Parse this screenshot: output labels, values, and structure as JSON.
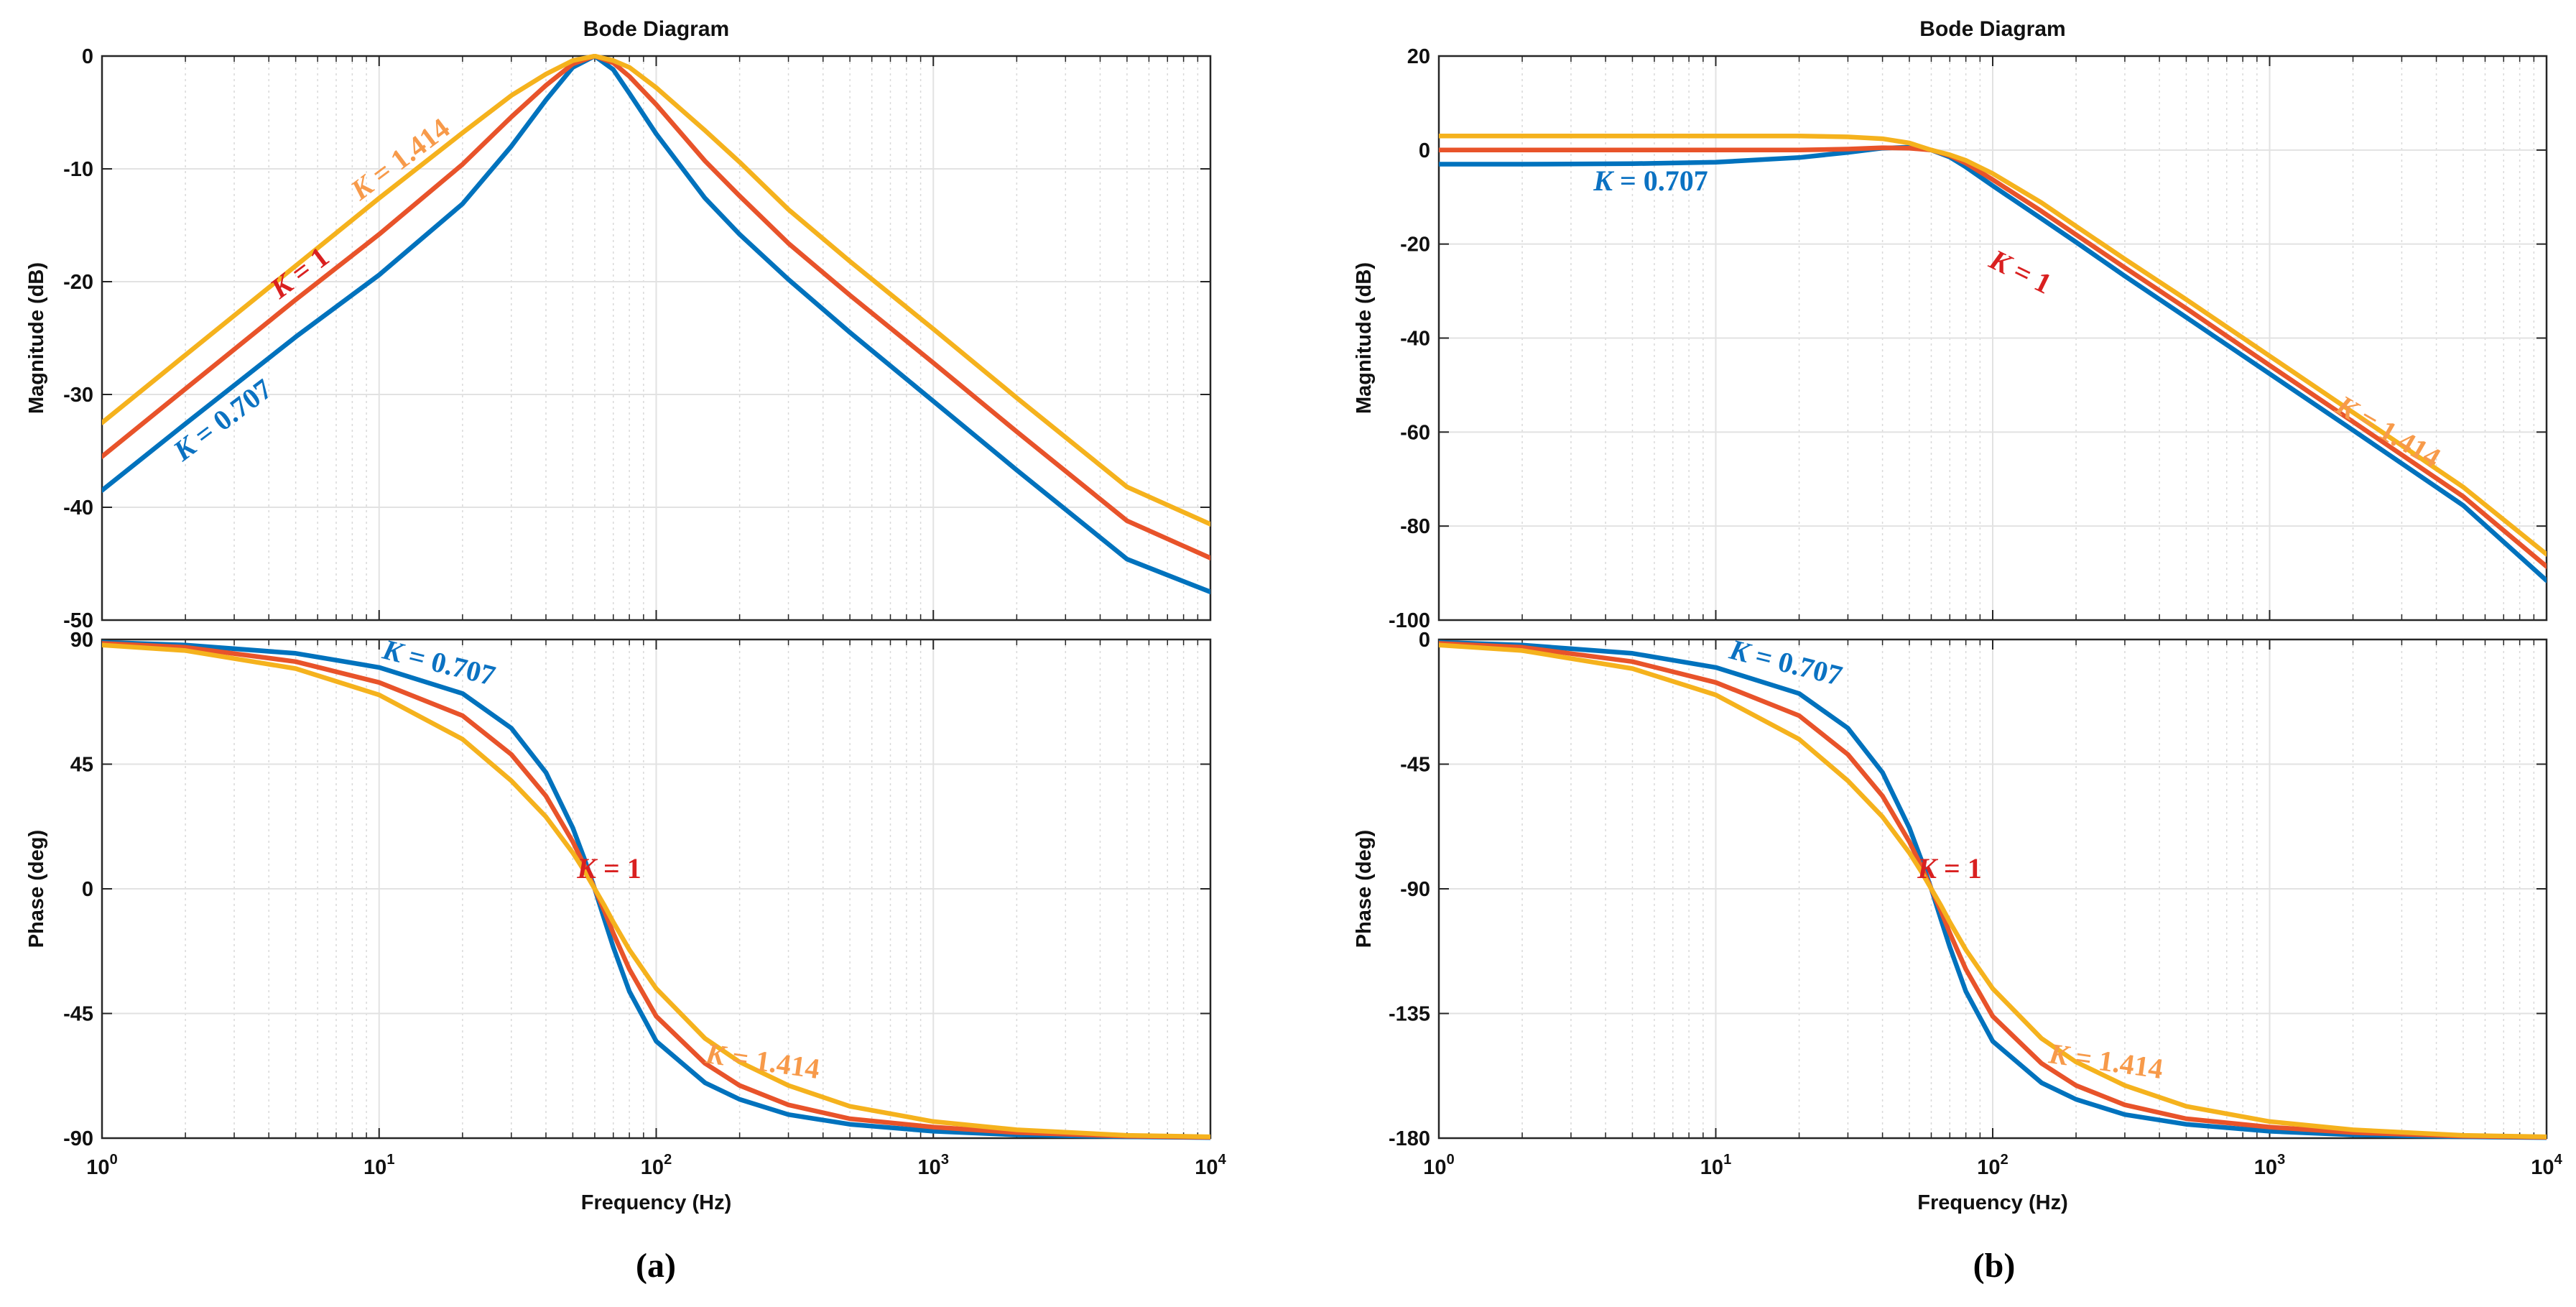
{
  "colors": {
    "k0707": "#0072BD",
    "k1": "#E8532A",
    "k1414": "#F5B21D",
    "k1414_label": "#F79A4A",
    "k1_label": "#D92020",
    "k0707_label": "#0B72C2",
    "grid": "#d9d9d9"
  },
  "chart_data": [
    {
      "type": "line",
      "panel_label": "(a)",
      "title": "Bode Diagram",
      "xlabel": "Frequency  (Hz)",
      "xscale": "log",
      "xlim": [
        1,
        10000
      ],
      "xticks": [
        {
          "base": "10",
          "exp": "0"
        },
        {
          "base": "10",
          "exp": "1"
        },
        {
          "base": "10",
          "exp": "2"
        },
        {
          "base": "10",
          "exp": "3"
        },
        {
          "base": "10",
          "exp": "4"
        }
      ],
      "magnitude": {
        "ylabel": "Magnitude (dB)",
        "ylim": [
          -50,
          0
        ],
        "yticks": [
          "0",
          "-10",
          "-20",
          "-30",
          "-40",
          "-50"
        ],
        "series": [
          {
            "name": "K = 0.707",
            "color_key": "k0707",
            "x": [
              1,
              2,
              5,
              10,
              20,
              30,
              40,
              50,
              60,
              70,
              80,
              100,
              150,
              200,
              300,
              500,
              1000,
              2000,
              5000,
              10000
            ],
            "y": [
              -38.5,
              -32.6,
              -24.9,
              -19.4,
              -13.1,
              -8.0,
              -3.9,
              -1.0,
              0.0,
              -1.2,
              -3.3,
              -6.9,
              -12.6,
              -15.8,
              -19.8,
              -24.5,
              -30.6,
              -36.7,
              -44.6,
              -47.5
            ]
          },
          {
            "name": "K = 1",
            "color_key": "k1",
            "x": [
              1,
              2,
              5,
              10,
              20,
              30,
              40,
              50,
              60,
              70,
              80,
              100,
              150,
              200,
              300,
              500,
              1000,
              2000,
              5000,
              10000
            ],
            "y": [
              -35.5,
              -29.5,
              -21.6,
              -15.8,
              -9.6,
              -5.4,
              -2.6,
              -0.7,
              0.0,
              -0.6,
              -1.8,
              -4.3,
              -9.3,
              -12.4,
              -16.6,
              -21.2,
              -27.2,
              -33.3,
              -41.2,
              -44.5
            ]
          },
          {
            "name": "K = 1.414",
            "color_key": "k1414",
            "x": [
              1,
              2,
              5,
              10,
              20,
              30,
              40,
              50,
              60,
              70,
              80,
              100,
              150,
              200,
              300,
              500,
              1000,
              2000,
              5000,
              10000
            ],
            "y": [
              -32.5,
              -26.5,
              -18.6,
              -12.6,
              -6.8,
              -3.5,
              -1.6,
              -0.4,
              0.0,
              -0.4,
              -1.0,
              -2.8,
              -6.6,
              -9.4,
              -13.6,
              -18.2,
              -24.2,
              -30.3,
              -38.2,
              -41.5
            ]
          }
        ],
        "annotations": [
          {
            "var": "K",
            "text": " = 1.414",
            "color_key": "k1414_label"
          },
          {
            "var": "K",
            "text": " = 1",
            "color_key": "k1_label"
          },
          {
            "var": "K",
            "text": " = 0.707",
            "color_key": "k0707_label"
          }
        ]
      },
      "phase": {
        "ylabel": "Phase (deg)",
        "ylim": [
          -90,
          90
        ],
        "yticks": [
          "90",
          "45",
          "0",
          "-45",
          "-90"
        ],
        "series": [
          {
            "name": "K = 0.707",
            "color_key": "k0707",
            "x": [
              1,
              2,
              5,
              10,
              20,
              30,
              40,
              50,
              55,
              60,
              65,
              70,
              80,
              100,
              150,
              200,
              300,
              500,
              1000,
              2000,
              5000,
              10000
            ],
            "y": [
              89.0,
              88.0,
              85.0,
              79.9,
              70.5,
              58.0,
              42.0,
              22.0,
              11.0,
              0.0,
              -11.0,
              -21.0,
              -37.0,
              -55.0,
              -70.0,
              -76.0,
              -81.5,
              -85.0,
              -87.5,
              -88.8,
              -89.5,
              -89.8
            ]
          },
          {
            "name": "K = 1",
            "color_key": "k1",
            "x": [
              1,
              2,
              5,
              10,
              20,
              30,
              40,
              50,
              55,
              60,
              65,
              70,
              80,
              100,
              150,
              200,
              300,
              500,
              1000,
              2000,
              5000,
              10000
            ],
            "y": [
              88.6,
              87.2,
              82.0,
              74.5,
              62.5,
              48.5,
              33.5,
              17.0,
              8.5,
              0.0,
              -8.0,
              -16.0,
              -29.0,
              -46.0,
              -63.0,
              -71.0,
              -78.0,
              -83.0,
              -86.0,
              -88.0,
              -89.3,
              -89.7
            ]
          },
          {
            "name": "K = 1.414",
            "color_key": "k1414",
            "x": [
              1,
              2,
              5,
              10,
              20,
              30,
              40,
              50,
              55,
              60,
              65,
              70,
              80,
              100,
              150,
              200,
              300,
              500,
              1000,
              2000,
              5000,
              10000
            ],
            "y": [
              88.0,
              86.0,
              79.5,
              70.0,
              54.0,
              39.0,
              26.0,
              13.0,
              6.5,
              0.0,
              -6.0,
              -12.0,
              -22.0,
              -36.0,
              -54.0,
              -62.5,
              -71.0,
              -78.5,
              -84.0,
              -87.0,
              -89.0,
              -89.5
            ]
          }
        ],
        "annotations": [
          {
            "var": "K",
            "text": " = 0.707",
            "color_key": "k0707_label"
          },
          {
            "var": "K",
            "text": " = 1",
            "color_key": "k1_label"
          },
          {
            "var": "K",
            "text": " = 1.414",
            "color_key": "k1414_label"
          }
        ]
      }
    },
    {
      "type": "line",
      "panel_label": "(b)",
      "title": "Bode Diagram",
      "xlabel": "Frequency  (Hz)",
      "xscale": "log",
      "xlim": [
        1,
        10000
      ],
      "xticks": [
        {
          "base": "10",
          "exp": "0"
        },
        {
          "base": "10",
          "exp": "1"
        },
        {
          "base": "10",
          "exp": "2"
        },
        {
          "base": "10",
          "exp": "3"
        },
        {
          "base": "10",
          "exp": "4"
        }
      ],
      "magnitude": {
        "ylabel": "Magnitude (dB)",
        "ylim": [
          -100,
          20
        ],
        "yticks": [
          "20",
          "0",
          "-20",
          "-40",
          "-60",
          "-80",
          "-100"
        ],
        "series": [
          {
            "name": "K = 0.707",
            "color_key": "k0707",
            "x": [
              1,
              2,
              5,
              10,
              20,
              30,
              40,
              50,
              60,
              70,
              80,
              100,
              150,
              200,
              300,
              500,
              1000,
              2000,
              5000,
              10000
            ],
            "y": [
              -3.0,
              -3.0,
              -2.9,
              -2.6,
              -1.6,
              -0.5,
              0.4,
              0.6,
              0.0,
              -1.5,
              -3.6,
              -7.6,
              -14.6,
              -19.6,
              -26.8,
              -35.6,
              -47.6,
              -59.6,
              -75.6,
              -91.6
            ]
          },
          {
            "name": "K = 1",
            "color_key": "k1",
            "x": [
              1,
              2,
              5,
              10,
              20,
              30,
              40,
              50,
              60,
              70,
              80,
              100,
              150,
              200,
              300,
              500,
              1000,
              2000,
              5000,
              10000
            ],
            "y": [
              0.0,
              0.0,
              0.0,
              0.0,
              0.0,
              0.2,
              0.5,
              0.4,
              0.0,
              -1.2,
              -2.8,
              -6.3,
              -13.0,
              -18.0,
              -25.0,
              -33.7,
              -45.8,
              -57.8,
              -73.7,
              -88.6
            ]
          },
          {
            "name": "K = 1.414",
            "color_key": "k1414",
            "x": [
              1,
              2,
              5,
              10,
              20,
              30,
              40,
              50,
              60,
              70,
              80,
              100,
              150,
              200,
              300,
              500,
              1000,
              2000,
              5000,
              10000
            ],
            "y": [
              3.0,
              3.0,
              3.0,
              3.0,
              3.0,
              2.8,
              2.4,
              1.5,
              0.0,
              -1.0,
              -2.2,
              -5.0,
              -11.2,
              -16.2,
              -23.2,
              -31.8,
              -43.8,
              -55.8,
              -71.7,
              -86.0
            ]
          }
        ],
        "annotations": [
          {
            "var": "K",
            "text": " = 0.707",
            "color_key": "k0707_label"
          },
          {
            "var": "K",
            "text": " = 1",
            "color_key": "k1_label"
          },
          {
            "var": "K",
            "text": " = 1.414",
            "color_key": "k1414_label"
          }
        ]
      },
      "phase": {
        "ylabel": "Phase (deg)",
        "ylim": [
          -180,
          0
        ],
        "yticks": [
          "0",
          "-45",
          "-90",
          "-135",
          "-180"
        ],
        "series": [
          {
            "name": "K = 0.707",
            "color_key": "k0707",
            "x": [
              1,
              2,
              5,
              10,
              20,
              30,
              40,
              50,
              55,
              60,
              65,
              70,
              80,
              100,
              150,
              200,
              300,
              500,
              1000,
              2000,
              5000,
              10000
            ],
            "y": [
              -1.0,
              -2.0,
              -5.0,
              -10.1,
              -19.5,
              -32.0,
              -48.0,
              -68.0,
              -79.0,
              -90.0,
              -101.0,
              -111.0,
              -127.0,
              -145.0,
              -160.0,
              -166.0,
              -171.5,
              -175.0,
              -177.5,
              -178.8,
              -179.5,
              -179.8
            ]
          },
          {
            "name": "K = 1",
            "color_key": "k1",
            "x": [
              1,
              2,
              5,
              10,
              20,
              30,
              40,
              50,
              55,
              60,
              65,
              70,
              80,
              100,
              150,
              200,
              300,
              500,
              1000,
              2000,
              5000,
              10000
            ],
            "y": [
              -1.4,
              -2.8,
              -8.0,
              -15.5,
              -27.5,
              -41.5,
              -56.5,
              -73.0,
              -81.5,
              -90.0,
              -98.0,
              -106.0,
              -119.0,
              -136.0,
              -153.0,
              -161.0,
              -168.0,
              -173.0,
              -176.0,
              -178.0,
              -179.3,
              -179.7
            ]
          },
          {
            "name": "K = 1.414",
            "color_key": "k1414",
            "x": [
              1,
              2,
              5,
              10,
              20,
              30,
              40,
              50,
              55,
              60,
              65,
              70,
              80,
              100,
              150,
              200,
              300,
              500,
              1000,
              2000,
              5000,
              10000
            ],
            "y": [
              -2.0,
              -4.0,
              -10.5,
              -20.0,
              -36.0,
              -51.0,
              -64.0,
              -77.0,
              -83.5,
              -90.0,
              -96.0,
              -102.0,
              -112.0,
              -126.0,
              -144.0,
              -152.5,
              -161.0,
              -168.5,
              -174.0,
              -177.0,
              -179.0,
              -179.5
            ]
          }
        ],
        "annotations": [
          {
            "var": "K",
            "text": " = 0.707",
            "color_key": "k0707_label"
          },
          {
            "var": "K",
            "text": " = 1",
            "color_key": "k1_label"
          },
          {
            "var": "K",
            "text": " = 1.414",
            "color_key": "k1414_label"
          }
        ]
      }
    }
  ]
}
